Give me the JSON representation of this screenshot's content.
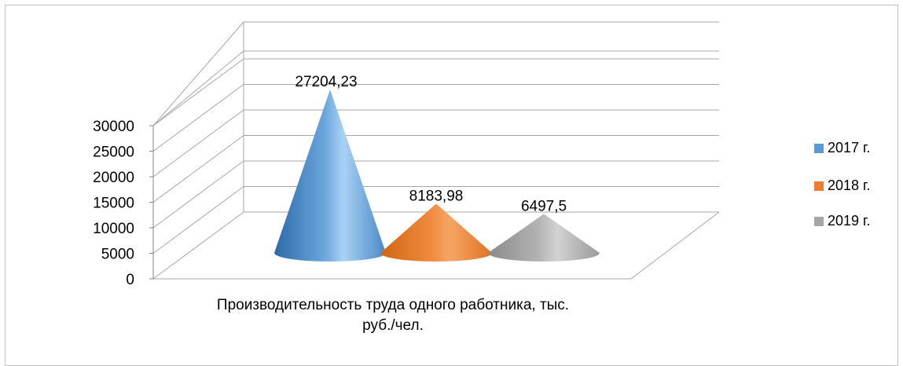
{
  "chart_data": {
    "type": "bar",
    "categories": [
      "Производительность труда одного работника, тыс. руб./чел."
    ],
    "series": [
      {
        "name": "2017 г.",
        "values": [
          27204.23
        ],
        "color": "#5b9bd5",
        "label": "27204,23"
      },
      {
        "name": "2018 г.",
        "values": [
          8183.98
        ],
        "color": "#ed7d31",
        "label": "8183,98"
      },
      {
        "name": "2019 г.",
        "values": [
          6497.5
        ],
        "color": "#a5a5a5",
        "label": "6497,5"
      }
    ],
    "yticks": [
      "0",
      "5000",
      "10000",
      "15000",
      "20000",
      "25000",
      "30000"
    ],
    "ylim": [
      0,
      30000
    ],
    "xlabel": "Производительность труда одного работника, тыс. руб./чел.",
    "xlabel_lines": [
      "Производительность труда одного работника, тыс.",
      "руб./чел."
    ],
    "legend_position": "right",
    "grid": true,
    "shape": "cone-3d"
  }
}
